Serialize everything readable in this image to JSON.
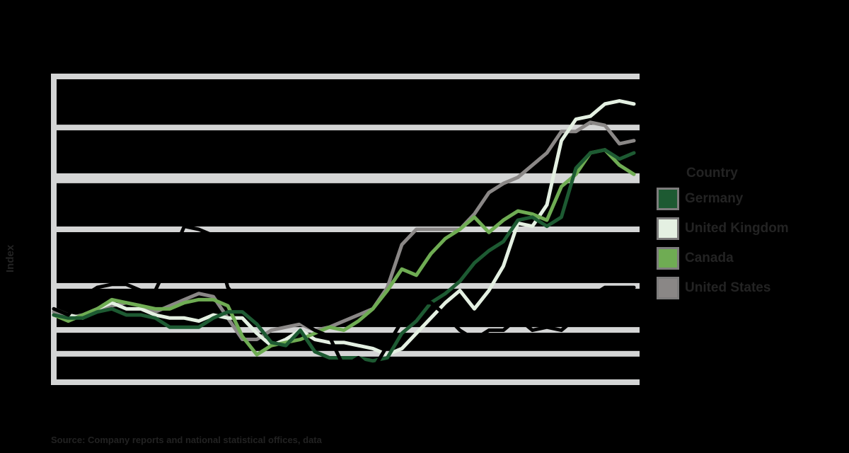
{
  "chart": {
    "y_axis_label": "Index",
    "source_text": "Source: Company reports and national statistical offices, data"
  },
  "legend": {
    "title": "Country",
    "items": [
      {
        "label": "Germany",
        "color": "#1d5a32"
      },
      {
        "label": "United Kingdom",
        "color": "#e4f0e2"
      },
      {
        "label": "Canada",
        "color": "#6fac53"
      },
      {
        "label": "United States",
        "color": "#8a8786"
      }
    ]
  },
  "colors": {
    "background": "#000000",
    "grid": "#d4d5d5",
    "text": "#232323",
    "hidden_series": "#000000"
  },
  "chart_data": {
    "type": "line",
    "title": "",
    "xlabel": "",
    "ylabel": "Index",
    "ylim": [
      0,
      100
    ],
    "xlim": [
      0,
      40
    ],
    "grid": true,
    "legend_position": "right",
    "gridlines_y": [
      100,
      83.3,
      66.7,
      50,
      31.5,
      17.1,
      9.3,
      0
    ],
    "x": [
      0,
      1,
      2,
      3,
      4,
      5,
      6,
      7,
      8,
      9,
      10,
      11,
      12,
      13,
      14,
      15,
      16,
      17,
      18,
      19,
      20,
      21,
      22,
      23,
      24,
      25,
      26,
      27,
      28,
      29,
      30,
      31,
      32,
      33,
      34,
      35,
      36,
      37,
      38,
      39,
      40
    ],
    "series": [
      {
        "name": "Germany",
        "color": "#1d5a32",
        "values": [
          22,
          21,
          21,
          23,
          24,
          22,
          22,
          21,
          18,
          18,
          18,
          21,
          23,
          23,
          19,
          13,
          12,
          17,
          10,
          8,
          8,
          8,
          7,
          8,
          16,
          20,
          26,
          29,
          33,
          39,
          43,
          46,
          53,
          54,
          51,
          54,
          70,
          75,
          76,
          73,
          75
        ]
      },
      {
        "name": "United Kingdom",
        "color": "#e4f0e2",
        "values": [
          24,
          22,
          21,
          24,
          26,
          24,
          24,
          22,
          21,
          21,
          20,
          22,
          21,
          21,
          16,
          12,
          14,
          17,
          14,
          13,
          13,
          12,
          11,
          9,
          11,
          16,
          21,
          26,
          30,
          24,
          30,
          38,
          52,
          51,
          58,
          79,
          86,
          87,
          91,
          92,
          91
        ]
      },
      {
        "name": "Canada",
        "color": "#6fac53",
        "values": [
          22,
          20,
          22,
          24,
          27,
          26,
          25,
          24,
          24,
          26,
          27,
          27,
          25,
          15,
          9,
          12,
          13,
          14,
          16,
          18,
          17,
          20,
          24,
          30,
          37,
          35,
          42,
          47,
          50,
          54,
          49,
          53,
          56,
          55,
          53,
          64,
          68,
          75,
          76,
          71,
          68
        ]
      },
      {
        "name": "United States",
        "color": "#8a8786",
        "values": [
          23,
          21,
          22,
          24,
          25,
          26,
          25,
          23,
          25,
          27,
          29,
          28,
          21,
          14,
          14,
          17,
          18,
          19,
          17,
          18,
          20,
          22,
          24,
          31,
          45,
          50,
          50,
          50,
          50,
          55,
          62,
          65,
          67,
          71,
          75,
          82,
          82,
          85,
          84,
          78,
          79
        ]
      },
      {
        "name": "Other (unlabeled)",
        "color": "#000000",
        "values": [
          24,
          22,
          28,
          31,
          32,
          32,
          30,
          30,
          40,
          51,
          50,
          48,
          31,
          25,
          21,
          22,
          21,
          20,
          17,
          15,
          5,
          8,
          4,
          12,
          20,
          26,
          26,
          22,
          17,
          14,
          17,
          17,
          21,
          17,
          18,
          17,
          21,
          28,
          31,
          31,
          31
        ]
      }
    ]
  }
}
